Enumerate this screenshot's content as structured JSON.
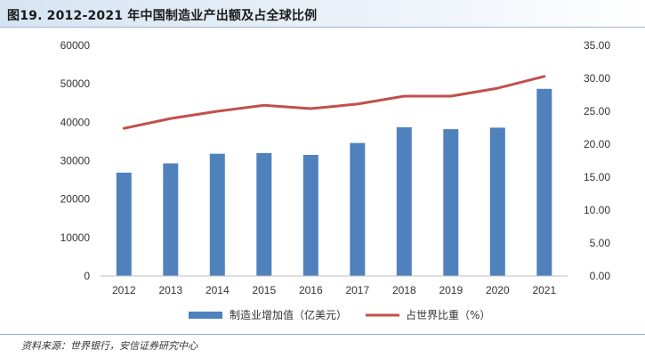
{
  "header": {
    "title": "图19. 2012-2021 年中国制造业产出额及占全球比例"
  },
  "source_note": "资料来源：世界银行，安信证券研究中心",
  "chart_data": {
    "type": "bar+line",
    "title": "图19. 2012-2021 年中国制造业产出额及占全球比例",
    "categories": [
      "2012",
      "2013",
      "2014",
      "2015",
      "2016",
      "2017",
      "2018",
      "2019",
      "2020",
      "2021"
    ],
    "series": [
      {
        "name": "制造业增加值（亿美元）",
        "type": "bar",
        "axis": "left",
        "color": "#4f81bd",
        "values": [
          26900,
          29300,
          31800,
          32000,
          31500,
          34600,
          38700,
          38200,
          38600,
          48700
        ]
      },
      {
        "name": "占世界比重（%）",
        "type": "line",
        "axis": "right",
        "color": "#c0504d",
        "values": [
          22.4,
          23.9,
          25.0,
          25.9,
          25.4,
          26.1,
          27.3,
          27.3,
          28.5,
          30.3
        ]
      }
    ],
    "y_left": {
      "range": [
        0,
        60000
      ],
      "ticks": [
        "0",
        "10000",
        "20000",
        "30000",
        "40000",
        "50000",
        "60000"
      ]
    },
    "y_right": {
      "range": [
        0,
        35
      ],
      "ticks": [
        "0.00",
        "5.00",
        "10.00",
        "15.00",
        "20.00",
        "25.00",
        "30.00",
        "35.00"
      ]
    },
    "grid": false,
    "legend_position": "bottom"
  }
}
